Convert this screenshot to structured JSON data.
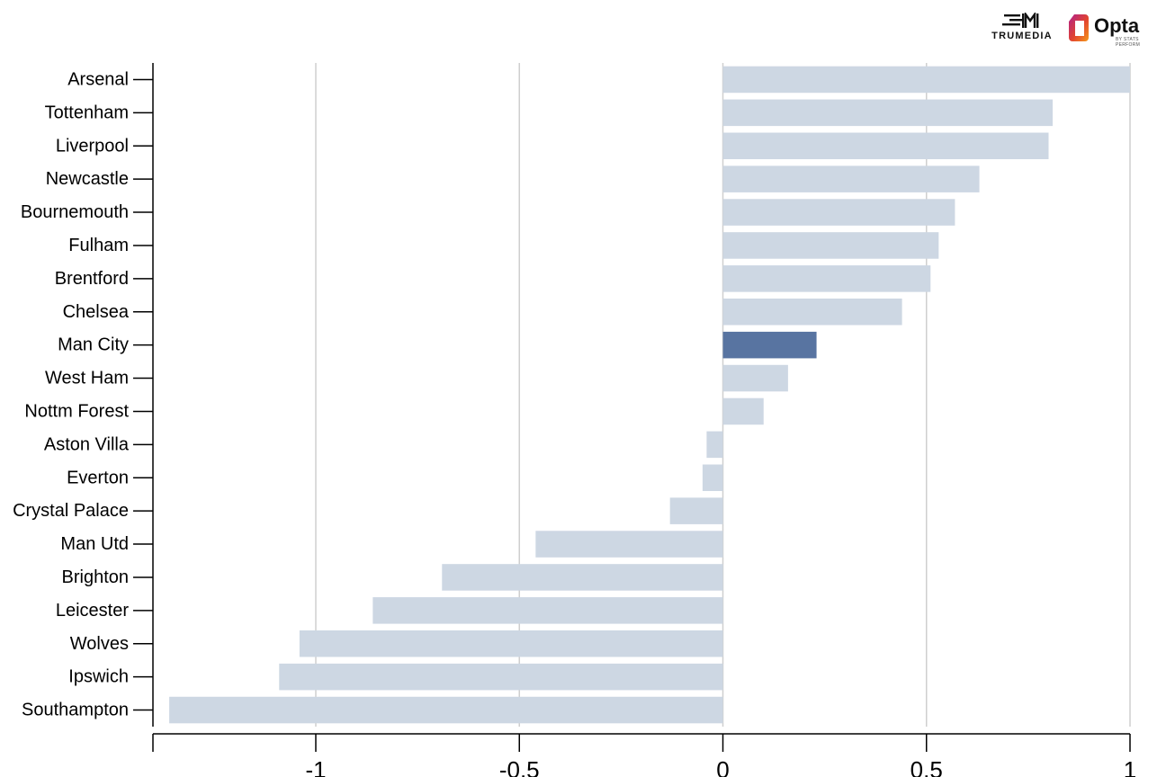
{
  "logos": {
    "trumedia": "TRUMEDIA",
    "opta": "Opta",
    "opta_sub": "BY STATS PERFORM"
  },
  "colors": {
    "bar": "#cdd7e3",
    "highlight": "#5874a1",
    "grid": "#cfcfcf",
    "axis": "#000000"
  },
  "chart_data": {
    "type": "bar",
    "orientation": "horizontal",
    "title": "",
    "xlabel": "",
    "ylabel": "",
    "xlim": [
      -1.4,
      1.0
    ],
    "xticks": [
      -1,
      -0.5,
      0,
      0.5,
      1
    ],
    "xtick_labels": [
      "-1",
      "-0.5",
      "0",
      "0.5",
      "1"
    ],
    "grid": "vertical",
    "highlight": "Man City",
    "categories": [
      "Arsenal",
      "Tottenham",
      "Liverpool",
      "Newcastle",
      "Bournemouth",
      "Fulham",
      "Brentford",
      "Chelsea",
      "Man City",
      "West Ham",
      "Nottm Forest",
      "Aston Villa",
      "Everton",
      "Crystal Palace",
      "Man Utd",
      "Brighton",
      "Leicester",
      "Wolves",
      "Ipswich",
      "Southampton"
    ],
    "values": [
      1.0,
      0.81,
      0.8,
      0.63,
      0.57,
      0.53,
      0.51,
      0.44,
      0.23,
      0.16,
      0.1,
      -0.04,
      -0.05,
      -0.13,
      -0.46,
      -0.69,
      -0.86,
      -1.04,
      -1.09,
      -1.36
    ]
  }
}
